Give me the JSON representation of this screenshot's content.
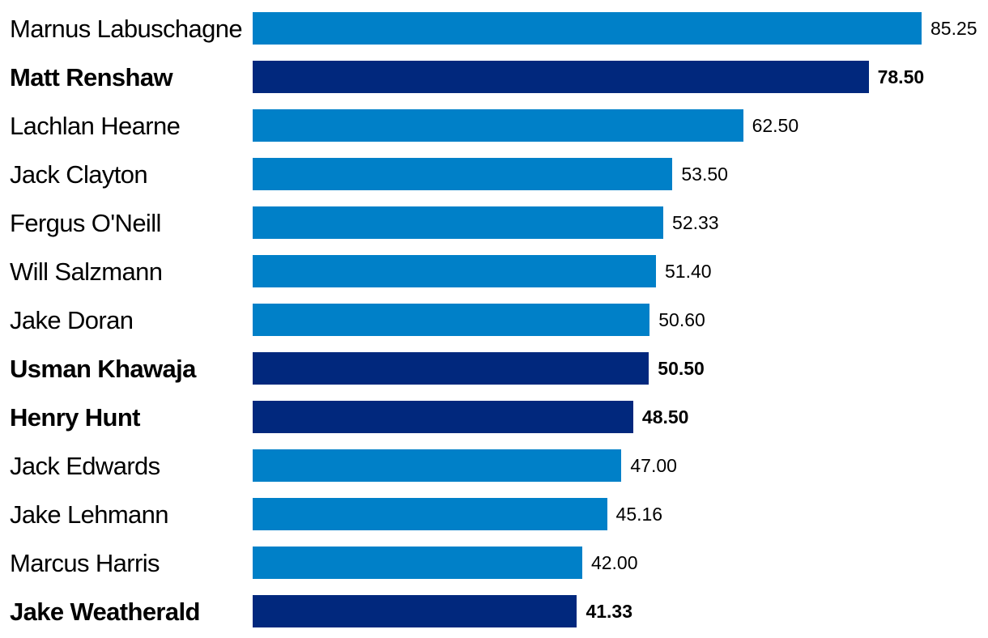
{
  "chart_data": {
    "type": "bar",
    "orientation": "horizontal",
    "title": "",
    "xlabel": "",
    "ylabel": "",
    "grid": false,
    "legend": "none",
    "xlim": [
      0,
      85.25
    ],
    "categories": [
      "Marnus Labuschagne",
      "Matt Renshaw",
      "Lachlan Hearne",
      "Jack Clayton",
      "Fergus O'Neill",
      "Will Salzmann",
      "Jake Doran",
      "Usman Khawaja",
      "Henry Hunt",
      "Jack Edwards",
      "Jake Lehmann",
      "Marcus Harris",
      "Jake Weatherald"
    ],
    "values": [
      85.25,
      78.5,
      62.5,
      53.5,
      52.33,
      51.4,
      50.6,
      50.5,
      48.5,
      47.0,
      45.16,
      42.0,
      41.33
    ],
    "value_labels": [
      "85.25",
      "78.50",
      "62.50",
      "53.50",
      "52.33",
      "51.40",
      "50.60",
      "50.50",
      "48.50",
      "47.00",
      "45.16",
      "42.00",
      "41.33"
    ],
    "highlighted": [
      false,
      true,
      false,
      false,
      false,
      false,
      false,
      true,
      true,
      false,
      false,
      false,
      true
    ],
    "colors": {
      "bar": "#0080C8",
      "bar_highlight": "#01287D",
      "text": "#000000",
      "background": "#ffffff"
    }
  }
}
